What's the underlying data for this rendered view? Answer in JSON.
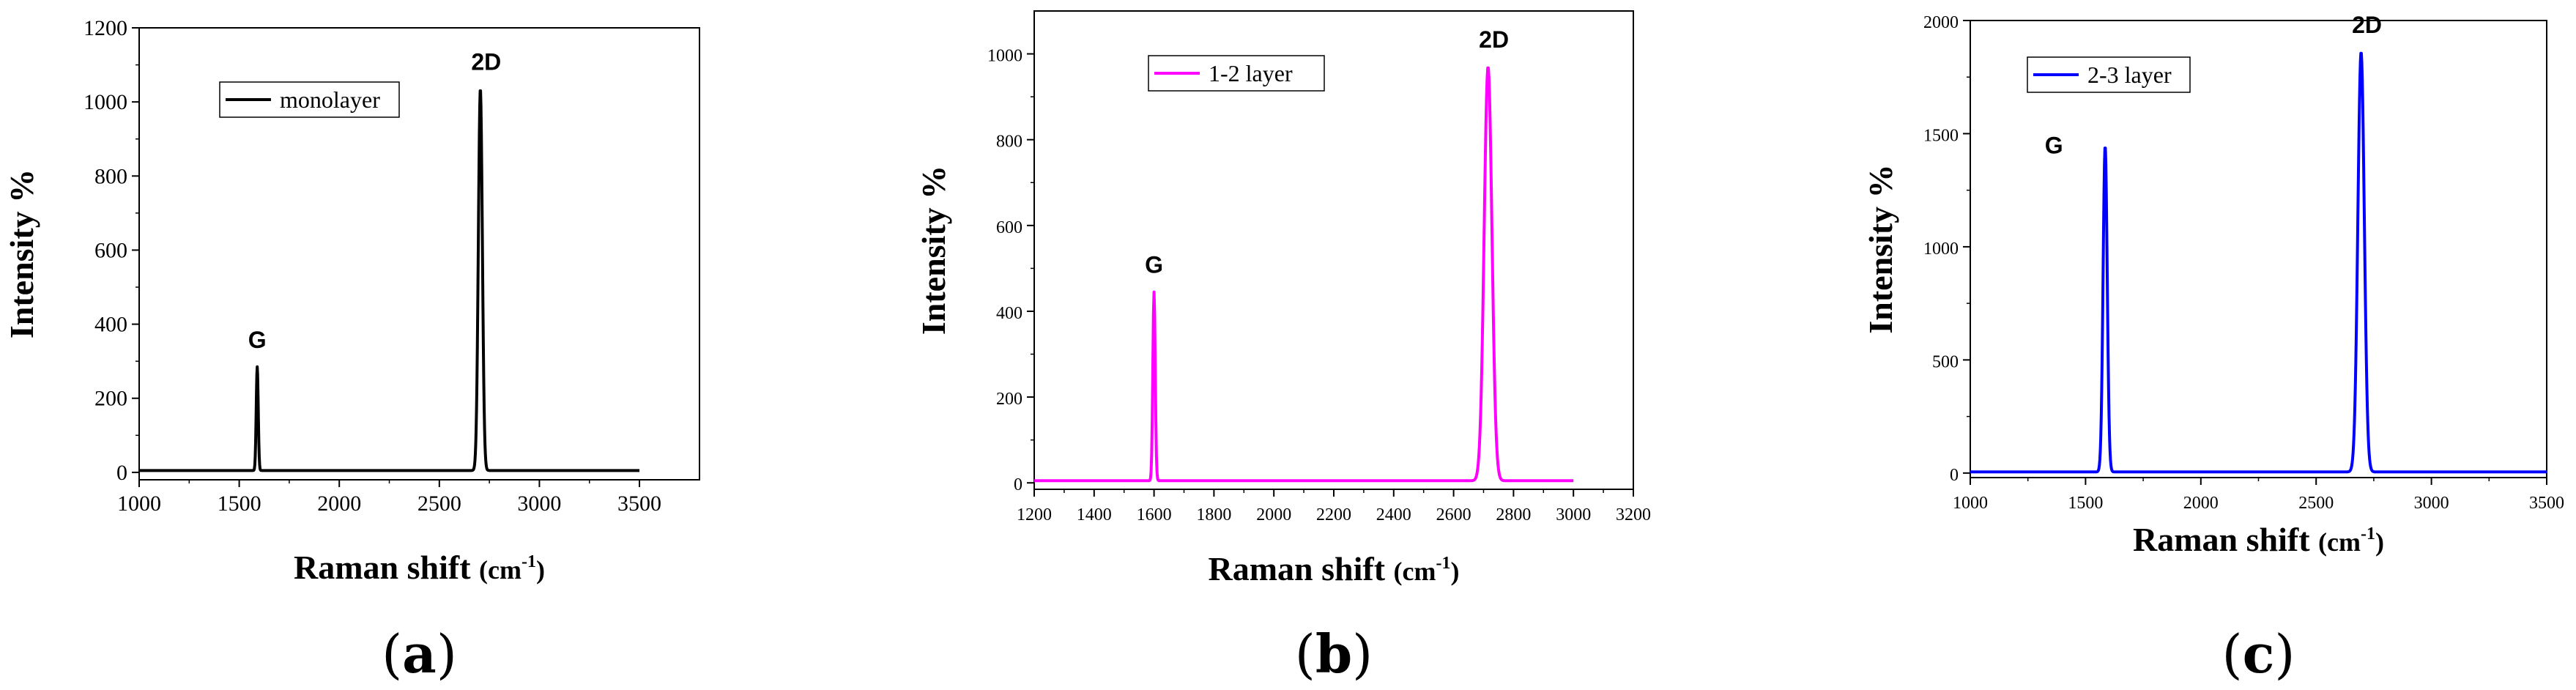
{
  "chart_data": [
    {
      "type": "line",
      "panel_label": "(a)",
      "panel_letter": "a",
      "xlabel": "Raman shift (cm-1)",
      "xlabel_main": "Raman shift",
      "xlabel_unit": "(cm",
      "xlabel_sup": "-1",
      "xlabel_close": ")",
      "ylabel": "Intensity %",
      "xlim": [
        1000,
        3800
      ],
      "ylim": [
        -20,
        1200
      ],
      "xticks": [
        1000,
        1500,
        2000,
        2500,
        3000,
        3500
      ],
      "yticks": [
        0,
        200,
        400,
        600,
        800,
        1000,
        1200
      ],
      "legend": "monolayer",
      "color": "#000000",
      "peaks": [
        {
          "label": "G",
          "x": 1590,
          "y": 285,
          "width": 5
        },
        {
          "label": "2D",
          "x": 2705,
          "y": 1035,
          "width": 10
        }
      ],
      "baseline": 5,
      "x_start": 1000,
      "x_end": 3500
    },
    {
      "type": "line",
      "panel_label": "(b)",
      "panel_letter": "b",
      "xlabel": "Raman shift (cm-1)",
      "xlabel_main": "Raman shift",
      "xlabel_unit": "(cm",
      "xlabel_sup": "-1",
      "xlabel_close": ")",
      "ylabel": "Intensity %",
      "xlim": [
        1200,
        3200
      ],
      "ylim": [
        -15,
        1100
      ],
      "xticks": [
        1200,
        1400,
        1600,
        1800,
        2000,
        2200,
        2400,
        2600,
        2800,
        3000,
        3200
      ],
      "yticks": [
        0,
        200,
        400,
        600,
        800,
        1000
      ],
      "legend": "1-2 layer",
      "color": "#ff00ff",
      "peaks": [
        {
          "label": "G",
          "x": 1600,
          "y": 445,
          "width": 4
        },
        {
          "label": "2D",
          "x": 2715,
          "y": 970,
          "width": 13
        }
      ],
      "baseline": 5,
      "x_start": 1200,
      "x_end": 3000
    },
    {
      "type": "line",
      "panel_label": "(c)",
      "panel_letter": "c",
      "xlabel": "Raman shift (cm-1)",
      "xlabel_main": "Raman shift",
      "xlabel_unit": "(cm",
      "xlabel_sup": "-1",
      "xlabel_close": ")",
      "ylabel": "Intensity %",
      "xlim": [
        1000,
        3500
      ],
      "ylim": [
        -20,
        2000
      ],
      "xticks": [
        1000,
        1500,
        2000,
        2500,
        3000,
        3500
      ],
      "yticks": [
        0,
        500,
        1000,
        1500,
        2000
      ],
      "legend": "2-3 layer",
      "color": "#0000ff",
      "peaks": [
        {
          "label": "G",
          "x": 1585,
          "y": 1445,
          "width": 9
        },
        {
          "label": "2D",
          "x": 2695,
          "y": 1860,
          "width": 14
        }
      ],
      "baseline": 5,
      "x_start": 1000,
      "x_end": 3500
    }
  ]
}
